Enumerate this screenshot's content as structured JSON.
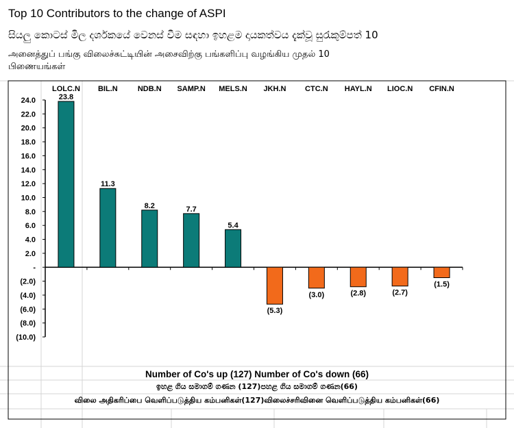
{
  "header": {
    "title": "Top 10 Contributors to the change of ASPI",
    "subtitle_si": "සියලු කොටස් මිල දර්ශකයේ වෙනස් වීම සඳහා ඉහළම දායකත්වය දැක්වූ සුරැකුම්පත් 10",
    "subtitle_ta_line1": "அனைத்துப் பங்கு விலைச்சுட்டியின் அசைவிற்கு பங்களிப்பு வழங்கிய முதல் 10",
    "subtitle_ta_line2": "பிணையங்கள்"
  },
  "chart_data": {
    "type": "bar",
    "title": "Top 10 Contributors to the change of ASPI",
    "categories": [
      "LOLC.N",
      "BIL.N",
      "NDB.N",
      "SAMP.N",
      "MELS.N",
      "JKH.N",
      "CTC.N",
      "HAYL.N",
      "LIOC.N",
      "CFIN.N"
    ],
    "values": [
      23.8,
      11.3,
      8.2,
      7.7,
      5.4,
      -5.3,
      -3.0,
      -2.8,
      -2.7,
      -1.5
    ],
    "value_labels": [
      "23.8",
      "11.3",
      "8.2",
      "7.7",
      "5.4",
      "(5.3)",
      "(3.0)",
      "(2.8)",
      "(2.7)",
      "(1.5)"
    ],
    "ylim": [
      -10,
      24
    ],
    "yticks": [
      24,
      22,
      20,
      18,
      16,
      14,
      12,
      10,
      8,
      6,
      4,
      2,
      0,
      -2,
      -4,
      -6,
      -8,
      -10
    ],
    "ytick_labels": [
      "24.0",
      "22.0",
      "20.0",
      "18.0",
      "16.0",
      "14.0",
      "12.0",
      "10.0",
      "8.0",
      "6.0",
      "4.0",
      "2.0",
      "-",
      "(2.0)",
      "(4.0)",
      "(6.0)",
      "(8.0)",
      "(10.0)"
    ],
    "xlabel": "",
    "ylabel": "",
    "grid": false,
    "colors": {
      "positive": "#0c7b78",
      "negative": "#f26a1b"
    }
  },
  "footer": {
    "summary_en": "Number of Co's up (127) Number of Co's down  (66)",
    "summary_si": "ඉහළ ගිය සමාගම් ගණන (127)පහළ ගිය සමාගම් ගණන(66)",
    "summary_ta": "விலை அதிகரிப்பை வெளிப்படுத்திய கம்பனிகள்(127)விலைச்சரிவினை வெளிப்படுத்திய கம்பனிகள்(66)"
  }
}
